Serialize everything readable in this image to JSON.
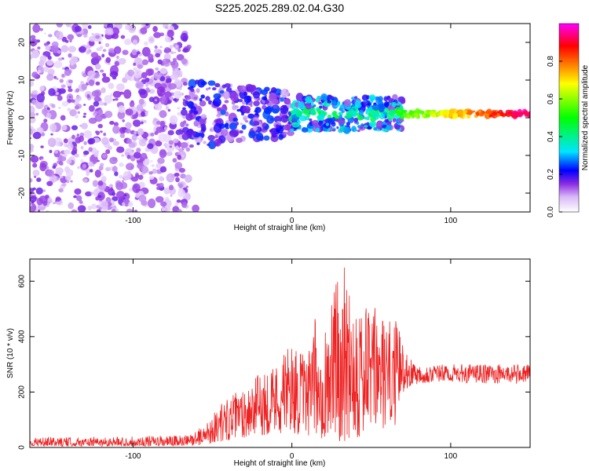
{
  "title": "S225.2025.289.02.04.G30",
  "chart_data": [
    {
      "type": "heatmap",
      "name": "spectrogram",
      "xlabel": "Height of straight line (km)",
      "ylabel": "Frequency (Hz)",
      "xlim": [
        -165,
        150
      ],
      "ylim": [
        -25,
        25
      ],
      "xticks": [
        -100,
        0,
        100
      ],
      "yticks": [
        -20,
        -10,
        0,
        10,
        20
      ],
      "grid": false,
      "colorbar": {
        "label": "Normalized spectral amplitude",
        "range": [
          0,
          1
        ],
        "ticks": [
          0.0,
          0.2,
          0.4,
          0.6,
          0.8
        ],
        "colors": [
          "#ffffff",
          "#d9b8f7",
          "#8a2be2",
          "#0000ff",
          "#00e5ff",
          "#00ff00",
          "#ffff00",
          "#ff0000",
          "#ff00ff"
        ]
      },
      "regions": [
        {
          "x_range": [
            -165,
            -65
          ],
          "freq_range": [
            -25,
            25
          ],
          "amplitude": "low (0.0-0.2), scattered noise"
        },
        {
          "x_range": [
            -65,
            0
          ],
          "freq_range": [
            -8,
            10
          ],
          "amplitude": "0.1-0.3"
        },
        {
          "x_range": [
            0,
            65
          ],
          "freq_range": [
            -5,
            5
          ],
          "amplitude": "0.2-0.5"
        },
        {
          "x_range": [
            65,
            150
          ],
          "freq_range": [
            0,
            2
          ],
          "amplitude": "0.6-1.0, centered near 1 Hz"
        }
      ]
    },
    {
      "type": "line",
      "name": "snr",
      "xlabel": "Height of straight line (km)",
      "ylabel": "SNR (10 * v/v)",
      "xlim": [
        -165,
        150
      ],
      "ylim": [
        0,
        680
      ],
      "xticks": [
        -100,
        0,
        100
      ],
      "yticks": [
        0,
        200,
        400,
        600
      ],
      "color": "#ee2222",
      "envelope": {
        "x": [
          -165,
          -100,
          -65,
          -55,
          -45,
          -35,
          -20,
          -10,
          0,
          10,
          15,
          20,
          25,
          30,
          35,
          40,
          45,
          50,
          55,
          60,
          65,
          70,
          75,
          80,
          100,
          120,
          150
        ],
        "upper": [
          35,
          40,
          45,
          80,
          160,
          200,
          270,
          310,
          380,
          320,
          480,
          420,
          560,
          640,
          680,
          590,
          500,
          530,
          490,
          450,
          470,
          380,
          320,
          300,
          300,
          300,
          300
        ],
        "lower": [
          5,
          5,
          5,
          10,
          20,
          30,
          40,
          50,
          50,
          40,
          30,
          30,
          20,
          20,
          20,
          20,
          30,
          50,
          60,
          60,
          80,
          200,
          220,
          230,
          235,
          230,
          230
        ]
      }
    }
  ]
}
